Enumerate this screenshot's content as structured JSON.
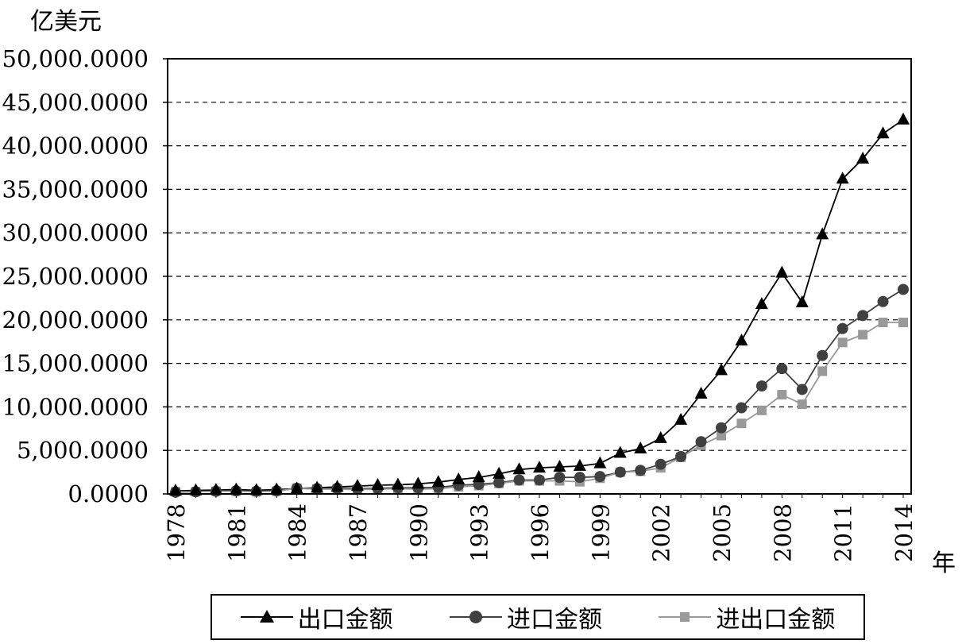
{
  "chart_data": {
    "type": "line",
    "ylabel": "亿美元",
    "xlabel": "年",
    "ylim": [
      0,
      50000
    ],
    "yticks": [
      "0.0000",
      "5,000.0000",
      "10,000.0000",
      "15,000.0000",
      "20,000.0000",
      "25,000.0000",
      "30,000.0000",
      "35,000.0000",
      "40,000.0000",
      "45,000.0000",
      "50,000.0000"
    ],
    "x": [
      1978,
      1979,
      1980,
      1981,
      1982,
      1983,
      1984,
      1985,
      1986,
      1987,
      1988,
      1989,
      1990,
      1991,
      1992,
      1993,
      1994,
      1995,
      1996,
      1997,
      1998,
      1999,
      2000,
      2001,
      2002,
      2003,
      2004,
      2005,
      2006,
      2007,
      2008,
      2009,
      2010,
      2011,
      2012,
      2013,
      2014
    ],
    "xticks": [
      "1978",
      "1981",
      "1984",
      "1987",
      "1990",
      "1993",
      "1996",
      "1999",
      "2002",
      "2005",
      "2008",
      "2011",
      "2014"
    ],
    "grid": "horizontal dashed",
    "legend": "bottom",
    "series": [
      {
        "name": "出口金额",
        "marker": "triangle",
        "color": "#000000",
        "values": [
          350,
          400,
          450,
          500,
          420,
          500,
          600,
          700,
          800,
          900,
          1000,
          1050,
          1150,
          1350,
          1650,
          1900,
          2300,
          2800,
          3000,
          3100,
          3200,
          3500,
          4700,
          5200,
          6400,
          8500,
          11500,
          14200,
          17600,
          21800,
          25400,
          22000,
          29800,
          36200,
          38500,
          41400,
          43000
        ]
      },
      {
        "name": "进口金额",
        "marker": "circle",
        "color": "#404040",
        "values": [
          200,
          250,
          300,
          350,
          300,
          350,
          650,
          600,
          650,
          600,
          650,
          700,
          700,
          750,
          1000,
          1100,
          1300,
          1600,
          1600,
          1900,
          1900,
          2000,
          2500,
          2700,
          3400,
          4300,
          6000,
          7600,
          9900,
          12400,
          14400,
          12000,
          15900,
          19000,
          20500,
          22100,
          23500
        ]
      },
      {
        "name": "进出口金额",
        "marker": "square",
        "color": "#999999",
        "values": [
          250,
          250,
          300,
          300,
          250,
          300,
          650,
          550,
          550,
          500,
          550,
          600,
          550,
          600,
          800,
          950,
          1200,
          1500,
          1500,
          1500,
          1400,
          1800,
          2500,
          2600,
          3000,
          4200,
          5600,
          6700,
          8100,
          9600,
          11400,
          10300,
          14100,
          17400,
          18300,
          19700,
          19700
        ]
      }
    ]
  }
}
